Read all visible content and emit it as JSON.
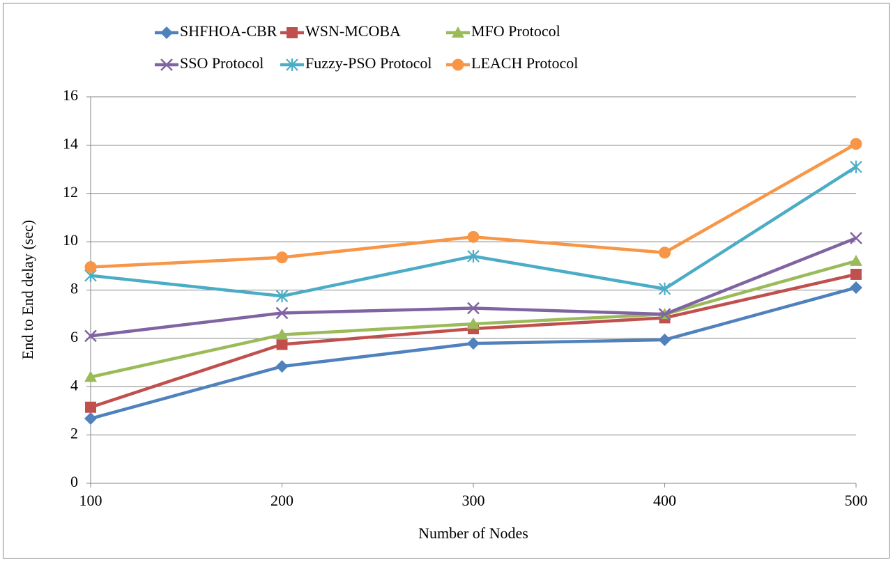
{
  "chart_data": {
    "type": "line",
    "x_label": "Number of Nodes",
    "y_label": "End to End delay (sec)",
    "x": [
      100,
      200,
      300,
      400,
      500
    ],
    "xlim": [
      100,
      500
    ],
    "xticks": [
      100,
      200,
      300,
      400,
      500
    ],
    "ylim": [
      0,
      16
    ],
    "yticks": [
      0,
      2,
      4,
      6,
      8,
      10,
      12,
      14,
      16
    ],
    "grid": true,
    "legend": "top",
    "series": [
      {
        "name": "SHFHOA-CBR",
        "color": "#4f81bd",
        "marker": "diamond",
        "values": [
          2.68,
          4.84,
          5.79,
          5.94,
          8.1
        ]
      },
      {
        "name": "WSN-MCOBA",
        "color": "#c0504d",
        "marker": "square",
        "values": [
          3.15,
          5.75,
          6.4,
          6.85,
          8.65
        ]
      },
      {
        "name": "MFO Protocol",
        "color": "#9bbb59",
        "marker": "triangle",
        "values": [
          4.4,
          6.15,
          6.6,
          7.0,
          9.2
        ]
      },
      {
        "name": "SSO Protocol",
        "color": "#8064a2",
        "marker": "x",
        "values": [
          6.1,
          7.05,
          7.25,
          7.0,
          10.15
        ]
      },
      {
        "name": "Fuzzy-PSO Protocol",
        "color": "#4bacc6",
        "marker": "asterisk",
        "values": [
          8.6,
          7.75,
          9.4,
          8.05,
          13.1
        ]
      },
      {
        "name": "LEACH Protocol",
        "color": "#f79646",
        "marker": "circle",
        "values": [
          8.95,
          9.35,
          10.2,
          9.55,
          14.05
        ]
      }
    ]
  }
}
